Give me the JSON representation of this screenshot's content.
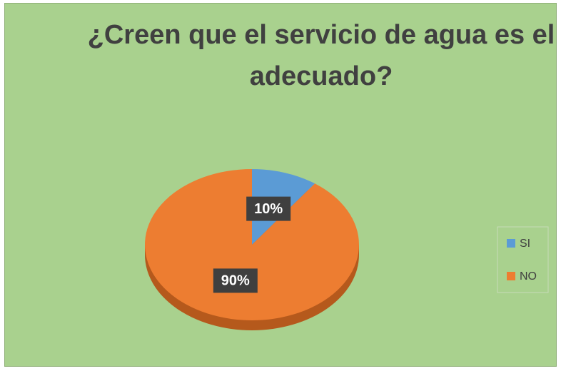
{
  "chart_data": {
    "type": "pie",
    "title": "¿Creen que el servicio de agua es el adecuado?",
    "categories": [
      "SI",
      "NO"
    ],
    "values": [
      10,
      90
    ],
    "value_labels": [
      "10%",
      "90%"
    ],
    "colors": [
      "#5b9bd5",
      "#ed7d31"
    ],
    "legend": "right"
  }
}
